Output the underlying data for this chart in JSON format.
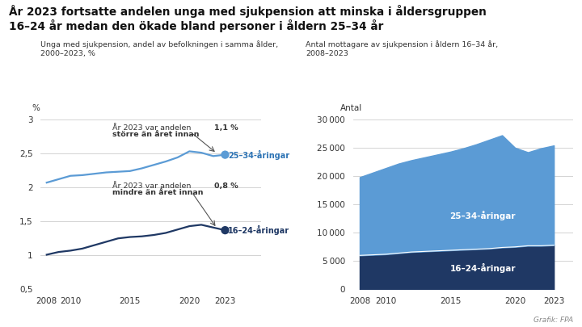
{
  "title_line1": "År 2023 fortsatte andelen unga med sjukpension att minska i åldersgruppen",
  "title_line2": "16–24 år medan den ökade bland personer i åldern 25–34 år",
  "left_subtitle": "Unga med sjukpension, andel av befolkningen i samma ålder,\n2000–2023, %",
  "right_subtitle": "Antal mottagare av sjukpension i åldern 16–34 år,\n2008–2023",
  "right_ylabel": "Antal",
  "left_ylabel": "%",
  "bg_color": "#ffffff",
  "line_color_25_34": "#5b9bd5",
  "line_color_16_24": "#1f3864",
  "area_color_25_34": "#5b9bd5",
  "area_color_16_24": "#1f3864",
  "label_color_25_34": "#2e74b5",
  "label_color_16_24": "#1f3864",
  "grid_color": "#cccccc",
  "left_years": [
    2008,
    2009,
    2010,
    2011,
    2012,
    2013,
    2014,
    2015,
    2016,
    2017,
    2018,
    2019,
    2020,
    2021,
    2022,
    2023
  ],
  "line_25_34": [
    2.07,
    2.12,
    2.17,
    2.18,
    2.2,
    2.22,
    2.23,
    2.24,
    2.28,
    2.33,
    2.38,
    2.44,
    2.53,
    2.51,
    2.46,
    2.48
  ],
  "line_16_24": [
    1.01,
    1.05,
    1.07,
    1.1,
    1.15,
    1.2,
    1.25,
    1.27,
    1.28,
    1.3,
    1.33,
    1.38,
    1.43,
    1.45,
    1.41,
    1.37
  ],
  "right_years": [
    2008,
    2009,
    2010,
    2011,
    2012,
    2013,
    2014,
    2015,
    2016,
    2017,
    2018,
    2019,
    2020,
    2021,
    2022,
    2023
  ],
  "area_16_24": [
    6000,
    6100,
    6200,
    6400,
    6600,
    6700,
    6800,
    6900,
    7000,
    7100,
    7200,
    7400,
    7500,
    7700,
    7700,
    7800
  ],
  "area_25_34": [
    13800,
    14500,
    15200,
    15800,
    16200,
    16600,
    17000,
    17400,
    17900,
    18500,
    19200,
    19800,
    17500,
    16500,
    17200,
    17600
  ],
  "grafik_text": "Grafik: FPA",
  "left_ylim": [
    0.5,
    3.0
  ],
  "left_yticks": [
    0.5,
    1.0,
    1.5,
    2.0,
    2.5,
    3.0
  ],
  "right_ylim": [
    0,
    30000
  ],
  "right_yticks": [
    0,
    5000,
    10000,
    15000,
    20000,
    25000,
    30000
  ],
  "xticks": [
    2008,
    2010,
    2015,
    2020,
    2023
  ]
}
